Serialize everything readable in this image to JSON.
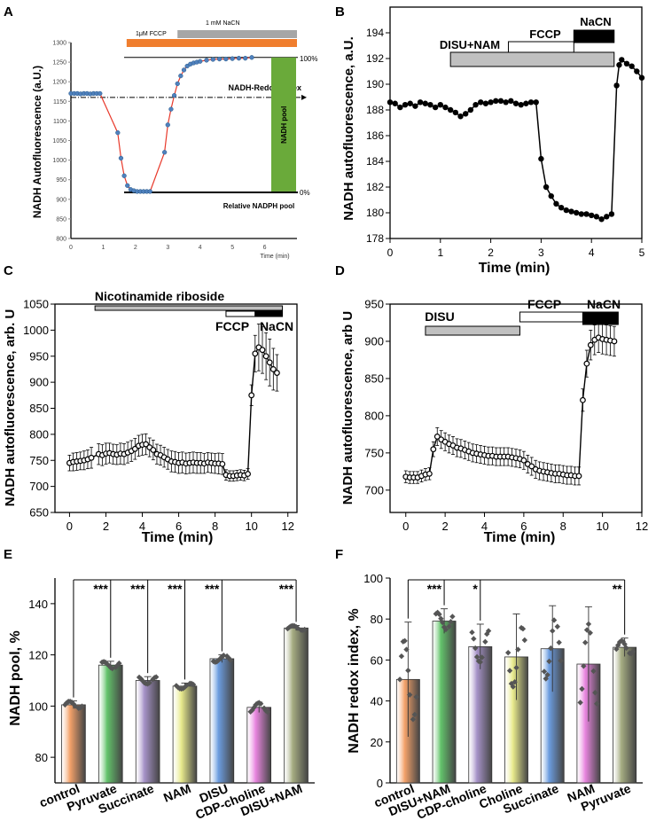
{
  "colors": {
    "blue": "#4f81bd",
    "red": "#e8392b",
    "orange": "#f07e2e",
    "gray": "#a6a6a6",
    "green": "#6aaa3a"
  },
  "chart_data": [
    {
      "id": "A",
      "type": "line",
      "ylabel": "NADH Autofluorescence (a.U.)",
      "xlabel": "Time (min)",
      "xlim": [
        0,
        7
      ],
      "ylim": [
        800,
        1300
      ],
      "xticks": [
        0,
        1,
        2,
        3,
        4,
        5,
        6
      ],
      "yticks": [
        800,
        850,
        900,
        950,
        1000,
        1050,
        1100,
        1150,
        1200,
        1250,
        1300
      ],
      "x": [
        0,
        0.1,
        0.2,
        0.3,
        0.4,
        0.5,
        0.6,
        0.7,
        0.8,
        0.9,
        1.45,
        1.55,
        1.65,
        1.75,
        1.85,
        1.95,
        2.05,
        2.15,
        2.25,
        2.35,
        2.45,
        2.9,
        3.0,
        3.1,
        3.2,
        3.3,
        3.4,
        3.5,
        3.6,
        3.7,
        3.8,
        3.9,
        4.0,
        4.2,
        4.4,
        4.6,
        4.8,
        5.0,
        5.2,
        5.4,
        5.6
      ],
      "y": [
        1170,
        1170,
        1170,
        1169,
        1170,
        1170,
        1169,
        1170,
        1170,
        1170,
        1070,
        1005,
        960,
        935,
        925,
        922,
        920,
        920,
        920,
        920,
        920,
        1020,
        1090,
        1130,
        1165,
        1195,
        1215,
        1230,
        1240,
        1245,
        1248,
        1250,
        1252,
        1255,
        1257,
        1258,
        1258,
        1259,
        1260,
        1260,
        1262
      ],
      "stimuli": [
        {
          "label": "1μM FCCP",
          "start": 2.0,
          "end": 7.0,
          "color": "orange"
        },
        {
          "label": "1 mM NaCN",
          "start": 3.3,
          "end": 7.0,
          "color": "gray"
        }
      ],
      "annotations": {
        "redox": "NADH-Redox index",
        "pool": "NADH pool",
        "pct100": "100%",
        "pct0": "0%",
        "nadph": "Relative NADPH pool"
      }
    },
    {
      "id": "B",
      "type": "line",
      "ylabel": "NADH autofluorescence, a.U.",
      "xlabel": "Time (min)",
      "xlim": [
        0,
        5
      ],
      "ylim": [
        178,
        196
      ],
      "xticks": [
        0,
        1,
        2,
        3,
        4,
        5
      ],
      "yticks": [
        178,
        180,
        182,
        184,
        186,
        188,
        190,
        192,
        194
      ],
      "x": [
        0,
        0.1,
        0.2,
        0.3,
        0.4,
        0.5,
        0.6,
        0.7,
        0.8,
        0.9,
        1.0,
        1.1,
        1.2,
        1.3,
        1.4,
        1.5,
        1.6,
        1.7,
        1.8,
        1.9,
        2.0,
        2.1,
        2.2,
        2.3,
        2.4,
        2.5,
        2.6,
        2.7,
        2.8,
        2.9,
        3.0,
        3.1,
        3.2,
        3.3,
        3.4,
        3.5,
        3.6,
        3.7,
        3.8,
        3.9,
        4.0,
        4.1,
        4.2,
        4.3,
        4.4,
        4.5,
        4.55,
        4.6,
        4.7,
        4.8,
        4.9,
        5.0
      ],
      "y": [
        188.6,
        188.5,
        188.2,
        188.4,
        188.5,
        188.3,
        188.6,
        188.5,
        188.4,
        188.2,
        188.4,
        188.2,
        188.0,
        187.8,
        187.5,
        187.7,
        188.0,
        188.4,
        188.6,
        188.5,
        188.6,
        188.7,
        188.7,
        188.6,
        188.7,
        188.5,
        188.4,
        188.5,
        188.6,
        188.6,
        184.2,
        182.0,
        181.3,
        180.7,
        180.4,
        180.2,
        180.1,
        180.0,
        179.9,
        179.9,
        179.8,
        179.7,
        179.5,
        179.7,
        179.9,
        189.9,
        191.5,
        191.9,
        191.6,
        191.4,
        191.0,
        190.5
      ],
      "stimuli": [
        {
          "label": "DISU+NAM",
          "start": 1.2,
          "end": 4.45,
          "style": "gray"
        },
        {
          "label": "FCCP",
          "start": 2.35,
          "end": 3.65,
          "style": "white"
        },
        {
          "label": "NaCN",
          "start": 3.65,
          "end": 4.45,
          "style": "black"
        }
      ]
    },
    {
      "id": "C",
      "type": "line",
      "ylabel": "NADH autofluorescence, arb. U",
      "xlabel": "Time (min)",
      "xlim": [
        -0.8,
        12.5
      ],
      "ylim": [
        650,
        1050
      ],
      "xticks": [
        0,
        2,
        4,
        6,
        8,
        10,
        12
      ],
      "yticks": [
        650,
        700,
        750,
        800,
        850,
        900,
        950,
        1000,
        1050
      ],
      "x": [
        0,
        0.2,
        0.4,
        0.6,
        0.8,
        1.0,
        1.2,
        1.6,
        1.8,
        2.0,
        2.2,
        2.4,
        2.6,
        2.8,
        3.0,
        3.2,
        3.4,
        3.6,
        3.8,
        4.0,
        4.2,
        4.4,
        4.6,
        4.8,
        5.0,
        5.2,
        5.4,
        5.6,
        5.8,
        6.0,
        6.2,
        6.4,
        6.6,
        6.8,
        7.0,
        7.2,
        7.4,
        7.6,
        7.8,
        8.0,
        8.2,
        8.4,
        8.6,
        8.8,
        9.0,
        9.2,
        9.4,
        9.6,
        9.8,
        10.0,
        10.2,
        10.4,
        10.6,
        10.8,
        11.0,
        11.2,
        11.4
      ],
      "y": [
        745,
        747,
        748,
        749,
        750,
        752,
        755,
        762,
        760,
        763,
        764,
        762,
        761,
        763,
        762,
        765,
        768,
        772,
        778,
        780,
        781,
        775,
        770,
        762,
        760,
        756,
        752,
        748,
        747,
        745,
        746,
        744,
        745,
        746,
        745,
        745,
        744,
        746,
        745,
        744,
        744,
        743,
        722,
        720,
        720,
        721,
        722,
        721,
        724,
        875,
        955,
        967,
        962,
        950,
        938,
        925,
        918
      ],
      "err": [
        15,
        17,
        17,
        17,
        18,
        18,
        20,
        20,
        20,
        20,
        19,
        19,
        19,
        20,
        20,
        20,
        20,
        20,
        20,
        20,
        20,
        18,
        19,
        19,
        19,
        19,
        19,
        20,
        20,
        20,
        20,
        20,
        20,
        20,
        20,
        20,
        19,
        19,
        19,
        19,
        20,
        20,
        10,
        10,
        10,
        10,
        10,
        10,
        10,
        20,
        35,
        45,
        45,
        45,
        45,
        40,
        35
      ],
      "stimuli": [
        {
          "label": "Nicotinamide riboside",
          "start": 1.4,
          "end": 11.7,
          "style": "gray"
        },
        {
          "label": "FCCP",
          "start": 8.6,
          "end": 10.2,
          "style": "white"
        },
        {
          "label": "NaCN",
          "start": 10.2,
          "end": 11.7,
          "style": "black"
        }
      ]
    },
    {
      "id": "D",
      "type": "line",
      "ylabel": "NADH autofluorescence, arb U",
      "xlabel": "Time (min)",
      "xlim": [
        -0.8,
        12
      ],
      "ylim": [
        670,
        950
      ],
      "xticks": [
        0,
        2,
        4,
        6,
        8,
        10,
        12
      ],
      "yticks": [
        700,
        750,
        800,
        850,
        900,
        950
      ],
      "x": [
        0,
        0.2,
        0.4,
        0.6,
        0.8,
        1.0,
        1.2,
        1.4,
        1.6,
        1.8,
        2.0,
        2.2,
        2.4,
        2.6,
        2.8,
        3.0,
        3.2,
        3.4,
        3.6,
        3.8,
        4.0,
        4.2,
        4.4,
        4.6,
        4.8,
        5.0,
        5.2,
        5.4,
        5.6,
        5.8,
        6.0,
        6.2,
        6.4,
        6.6,
        6.8,
        7.0,
        7.2,
        7.4,
        7.6,
        7.8,
        8.0,
        8.2,
        8.4,
        8.6,
        8.8,
        9.0,
        9.2,
        9.4,
        9.6,
        9.8,
        10.0,
        10.2,
        10.4,
        10.6
      ],
      "y": [
        718,
        717,
        717,
        717,
        719,
        721,
        722,
        755,
        772,
        768,
        765,
        762,
        760,
        757,
        756,
        754,
        752,
        750,
        749,
        748,
        747,
        746,
        746,
        745,
        745,
        745,
        745,
        744,
        743,
        742,
        740,
        735,
        732,
        728,
        726,
        725,
        724,
        723,
        722,
        722,
        721,
        720,
        720,
        719,
        719,
        821,
        870,
        895,
        902,
        905,
        903,
        902,
        901,
        900
      ],
      "err": [
        8,
        8,
        8,
        8,
        8,
        8,
        8,
        10,
        12,
        12,
        12,
        12,
        12,
        12,
        12,
        12,
        12,
        12,
        12,
        12,
        12,
        12,
        12,
        12,
        12,
        12,
        12,
        12,
        12,
        12,
        12,
        12,
        12,
        12,
        12,
        12,
        12,
        12,
        12,
        12,
        12,
        12,
        12,
        12,
        12,
        15,
        18,
        20,
        20,
        20,
        20,
        20,
        20,
        20
      ],
      "stimuli": [
        {
          "label": "DISU",
          "start": 1.0,
          "end": 5.8,
          "style": "gray"
        },
        {
          "label": "FCCP",
          "start": 5.8,
          "end": 9.0,
          "style": "white"
        },
        {
          "label": "NaCN",
          "start": 9.0,
          "end": 10.8,
          "style": "black"
        }
      ]
    },
    {
      "id": "E",
      "type": "bar",
      "ylabel": "NADH pool, %",
      "ylim": [
        70,
        150
      ],
      "yticks": [
        80,
        100,
        120,
        140
      ],
      "categories": [
        "control",
        "Pyruvate",
        "Succinate",
        "NAM",
        "DISU",
        "CDP-choline",
        "DISU+NAM"
      ],
      "values": [
        100.5,
        116,
        110,
        107.8,
        118.5,
        99.5,
        130.5
      ],
      "err": [
        1.5,
        1.5,
        1.5,
        1.2,
        1.5,
        2.0,
        1.0
      ],
      "colors": [
        "#f4a26a",
        "#63c36b",
        "#a793c9",
        "#e8ea8c",
        "#6c9de0",
        "#e986e0",
        "#a6ad82"
      ],
      "significance": [
        {
          "to": "Pyruvate",
          "label": "***"
        },
        {
          "to": "Succinate",
          "label": "***"
        },
        {
          "to": "NAM",
          "label": "***"
        },
        {
          "to": "DISU",
          "label": "***"
        },
        {
          "to": "DISU+NAM",
          "label": "***"
        }
      ]
    },
    {
      "id": "F",
      "type": "bar",
      "ylabel": "NADH redox index, %",
      "ylim": [
        0,
        100
      ],
      "yticks": [
        0,
        20,
        40,
        60,
        80,
        100
      ],
      "categories": [
        "control",
        "DISU+NAM",
        "CDP-choline",
        "Choline",
        "Succinate",
        "NAM",
        "Pyruvate"
      ],
      "values": [
        50.5,
        79,
        66.5,
        61.5,
        65.5,
        58,
        66.2
      ],
      "err": [
        28,
        6,
        11,
        21,
        21,
        28,
        4.5
      ],
      "colors": [
        "#f4a26a",
        "#63c36b",
        "#a793c9",
        "#e8ea8c",
        "#6c9de0",
        "#e986e0",
        "#a6ad82"
      ],
      "significance": [
        {
          "to": "DISU+NAM",
          "label": "***"
        },
        {
          "to": "CDP-choline",
          "label": "*"
        },
        {
          "to": "Pyruvate",
          "label": "**"
        }
      ]
    }
  ]
}
